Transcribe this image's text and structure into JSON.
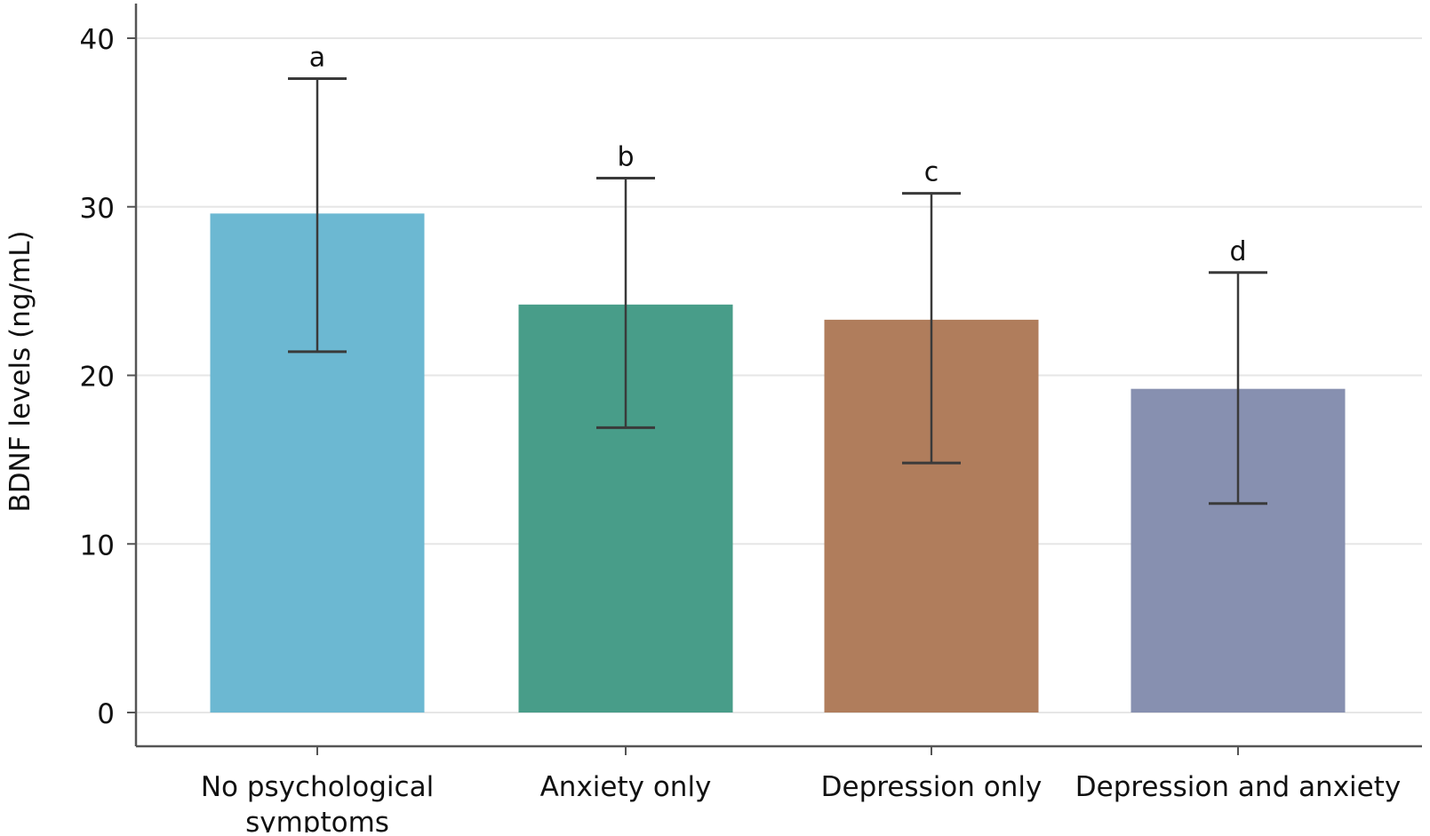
{
  "chart_data": {
    "type": "bar",
    "title": "",
    "xlabel": "",
    "ylabel": "BDNF levels (ng/mL)",
    "ylim": [
      0,
      40
    ],
    "yticks": [
      0,
      10,
      20,
      30,
      40
    ],
    "grid": true,
    "legend": "none",
    "categories": [
      [
        "No psychological",
        "symptoms"
      ],
      [
        "Anxiety only"
      ],
      [
        "Depression only"
      ],
      [
        "Depression and anxiety"
      ]
    ],
    "values": [
      29.6,
      24.2,
      23.3,
      19.2
    ],
    "error_bars": [
      {
        "low": 21.4,
        "high": 37.6
      },
      {
        "low": 16.9,
        "high": 31.7
      },
      {
        "low": 14.8,
        "high": 30.8
      },
      {
        "low": 12.4,
        "high": 26.1
      }
    ],
    "annotations": [
      "a",
      "b",
      "c",
      "d"
    ],
    "colors": [
      "#6cb8d2",
      "#489d89",
      "#b07d5c",
      "#8790b0"
    ]
  }
}
